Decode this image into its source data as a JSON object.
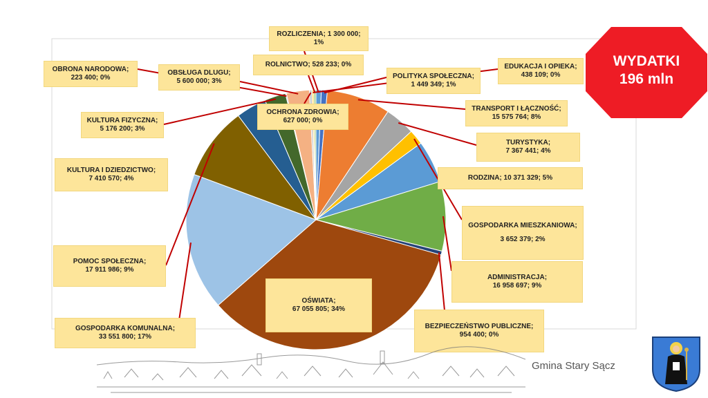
{
  "badge": {
    "title": "WYDATKI",
    "amount": "196 mln",
    "color": "#ee1c25"
  },
  "footer": {
    "text": "Gmina Stary Sącz"
  },
  "chart_data": {
    "type": "pie",
    "slices": [
      {
        "name": "ROZLICZENIA",
        "value_text": "1 300 000",
        "pct": "1%",
        "value": 1300000,
        "color": "#5b9bd5"
      },
      {
        "name": "POLITYKA SPOŁECZNA",
        "value_text": "1 449 349",
        "pct": "1%",
        "value": 1449349,
        "color": "#4472c4"
      },
      {
        "name": "TRANSPORT I ŁĄCZNOŚĆ",
        "value_text": "15 575 764",
        "pct": "8%",
        "value": 15575764,
        "color": "#ed7d31"
      },
      {
        "name": "TURYSTYKA",
        "value_text": "7 367 441",
        "pct": "4%",
        "value": 7367441,
        "color": "#a5a5a5"
      },
      {
        "name": "GOSPODARKA MIESZKANIOWA",
        "value_text": "3 652 379",
        "pct": "2%",
        "value": 3652379,
        "color": "#ffc000"
      },
      {
        "name": "RODZINA",
        "value_text": "10 371 329",
        "pct": "5%",
        "value": 10371329,
        "color": "#5b9bd5"
      },
      {
        "name": "ADMINISTRACJA",
        "value_text": "16 958 697",
        "pct": "9%",
        "value": 16958697,
        "color": "#70ad47"
      },
      {
        "name": "BEZPIECZEŃSTWO PUBLICZNE",
        "value_text": "954 400",
        "pct": "0%",
        "value": 954400,
        "color": "#264478"
      },
      {
        "name": "OŚWIATA",
        "value_text": "67 055 805",
        "pct": "34%",
        "value": 67055805,
        "color": "#9e480e"
      },
      {
        "name": "GOSPODARKA KOMUNALNA",
        "value_text": "33 551 800",
        "pct": "17%",
        "value": 33551800,
        "color": "#9dc3e6"
      },
      {
        "name": "POMOC SPOŁECZNA",
        "value_text": "17 911 986",
        "pct": "9%",
        "value": 17911986,
        "color": "#806000"
      },
      {
        "name": "KULTURA I DZIEDZICTWO",
        "value_text": "7 410 570",
        "pct": "4%",
        "value": 7410570,
        "color": "#255e91"
      },
      {
        "name": "KULTURA FIZYCZNA",
        "value_text": "5 176 200",
        "pct": "3%",
        "value": 5176200,
        "color": "#43682b"
      },
      {
        "name": "OBRONA NARODOWA",
        "value_text": "223 400",
        "pct": "0%",
        "value": 223400,
        "color": "#698ed0"
      },
      {
        "name": "OBSŁUGA DLUGU",
        "value_text": "5 600 000",
        "pct": "3%",
        "value": 5600000,
        "color": "#f4b183"
      },
      {
        "name": "OCHRONA ZDROWIA",
        "value_text": "627 000",
        "pct": "0%",
        "value": 627000,
        "color": "#c9c9c9"
      },
      {
        "name": "EDUKACJA I OPIEKA",
        "value_text": "438 109",
        "pct": "0%",
        "value": 438109,
        "color": "#ffd966"
      },
      {
        "name": "ROLNICTWO",
        "value_text": "528 233",
        "pct": "0%",
        "value": 528233,
        "color": "#a9d18e"
      }
    ]
  }
}
